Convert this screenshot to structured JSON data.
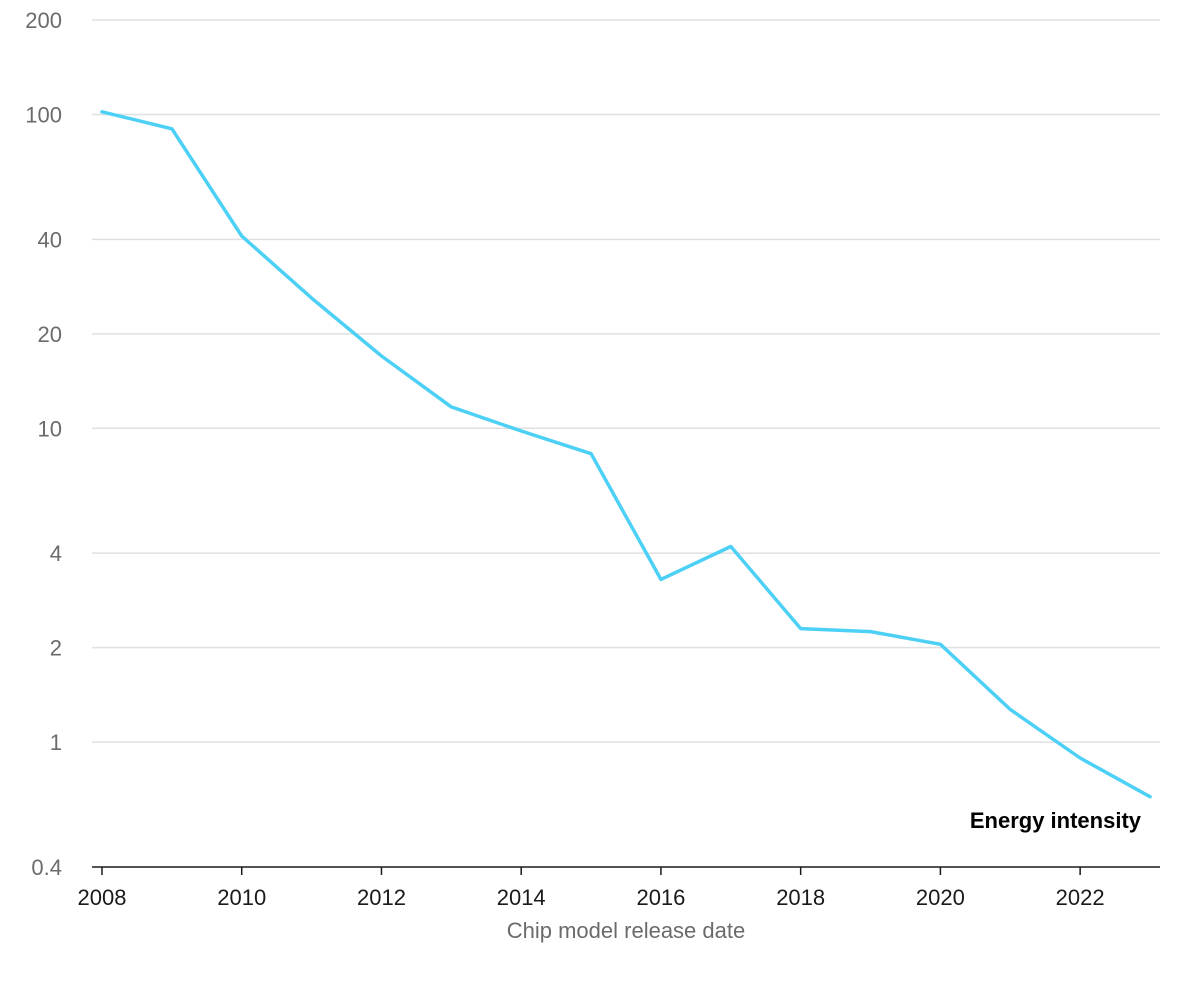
{
  "chart_data": {
    "type": "line",
    "xlabel": "Chip model release date",
    "ylabel": "",
    "yscale": "log",
    "ylim": [
      0.4,
      200
    ],
    "xlim": [
      2008,
      2023
    ],
    "yticks": [
      0.4,
      1,
      2,
      4,
      10,
      20,
      40,
      100,
      200
    ],
    "ytick_labels": [
      "0.4",
      "1",
      "2",
      "4",
      "10",
      "20",
      "40",
      "100",
      "200"
    ],
    "xticks": [
      2008,
      2010,
      2012,
      2014,
      2016,
      2018,
      2020,
      2022
    ],
    "xtick_labels": [
      "2008",
      "2010",
      "2012",
      "2014",
      "2016",
      "2018",
      "2020",
      "2022"
    ],
    "grid": true,
    "series": [
      {
        "name": "Energy intensity",
        "color": "#4dd0f5",
        "x": [
          2008,
          2009,
          2010,
          2011,
          2012,
          2013,
          2014,
          2015,
          2016,
          2017,
          2018,
          2019,
          2020,
          2021,
          2022,
          2023
        ],
        "values": [
          102,
          90,
          41,
          26,
          17,
          11.7,
          9.8,
          8.3,
          3.3,
          4.2,
          2.3,
          2.25,
          2.05,
          1.27,
          0.89,
          0.67
        ]
      }
    ]
  }
}
